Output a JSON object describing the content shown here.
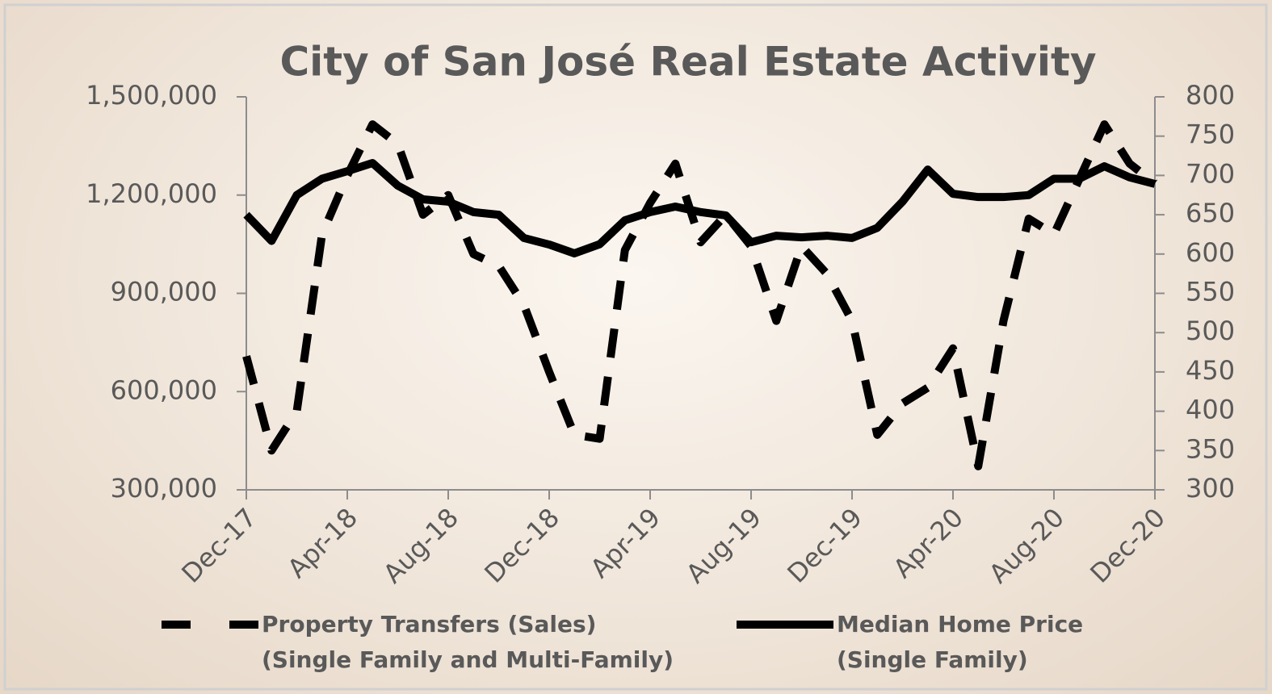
{
  "chart_data": {
    "type": "line",
    "title": "City of San José Real Estate Activity",
    "categories": [
      "Dec-17",
      null,
      null,
      null,
      "Apr-18",
      null,
      null,
      null,
      "Aug-18",
      null,
      null,
      null,
      "Dec-18",
      null,
      null,
      null,
      "Apr-19",
      null,
      null,
      null,
      "Aug-19",
      null,
      null,
      null,
      "Dec-19",
      null,
      null,
      null,
      "Apr-20",
      null,
      null,
      null,
      "Aug-20",
      null,
      null,
      null,
      "Dec-20"
    ],
    "ylim": [
      300000,
      1500000
    ],
    "yticks": [
      {
        "value": 300000,
        "label": "300,000"
      },
      {
        "value": 600000,
        "label": "600,000"
      },
      {
        "value": 900000,
        "label": "900,000"
      },
      {
        "value": 1200000,
        "label": "1,200,000"
      },
      {
        "value": 1500000,
        "label": "1,500,000"
      }
    ],
    "y2lim": [
      300,
      800
    ],
    "y2ticks": [
      300,
      350,
      400,
      450,
      500,
      550,
      600,
      650,
      700,
      750,
      800
    ],
    "series": [
      {
        "name": "Property Transfers (Sales)\n(Single Family and Multi-Family)",
        "color": "#000000",
        "line_style": "dashed",
        "axis": "y2",
        "values": [
          470,
          350,
          400,
          625,
          700,
          765,
          740,
          650,
          675,
          600,
          585,
          535,
          450,
          370,
          365,
          605,
          665,
          715,
          615,
          650,
          610,
          515,
          610,
          575,
          515,
          370,
          410,
          430,
          480,
          330,
          515,
          645,
          625,
          695,
          765,
          715,
          690
        ]
      },
      {
        "name": "Median Home Price\n(Single Family)",
        "color": "#000000",
        "line_style": "solid",
        "values": [
          1140000,
          1060000,
          1200000,
          1250000,
          1273000,
          1298000,
          1229000,
          1187000,
          1180000,
          1148000,
          1140000,
          1069000,
          1049000,
          1022000,
          1050000,
          1123000,
          1148000,
          1165000,
          1148000,
          1138000,
          1056000,
          1076000,
          1071000,
          1076000,
          1069000,
          1100000,
          1180000,
          1278000,
          1204000,
          1194000,
          1194000,
          1200000,
          1250000,
          1250000,
          1288000,
          1254000,
          1234000
        ]
      }
    ]
  }
}
